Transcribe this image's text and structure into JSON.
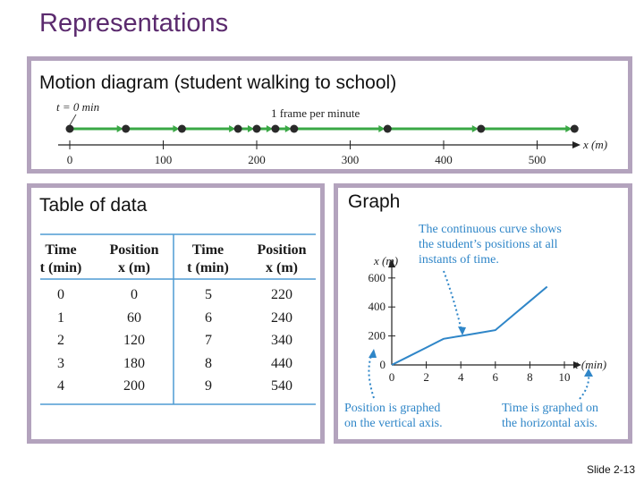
{
  "title": "Representations",
  "motion": {
    "label": "Motion diagram (student walking to school)",
    "t0_label": "t = 0 min",
    "frame_label": "1 frame per minute",
    "axis_label": "x (m)",
    "ticks": [
      "0",
      "100",
      "200",
      "300",
      "400",
      "500"
    ],
    "positions_m": [
      0,
      60,
      120,
      180,
      200,
      220,
      240,
      340,
      440,
      540
    ]
  },
  "table": {
    "label": "Table of data",
    "headers": [
      [
        "Time",
        "t (min)"
      ],
      [
        "Position",
        "x (m)"
      ],
      [
        "Time",
        "t (min)"
      ],
      [
        "Position",
        "x (m)"
      ]
    ],
    "rows": [
      [
        "0",
        "0",
        "5",
        "220"
      ],
      [
        "1",
        "60",
        "6",
        "240"
      ],
      [
        "2",
        "120",
        "7",
        "340"
      ],
      [
        "3",
        "180",
        "8",
        "440"
      ],
      [
        "4",
        "200",
        "9",
        "540"
      ]
    ]
  },
  "graph": {
    "label": "Graph",
    "callout_curve": [
      "The continuous curve shows",
      "the student’s positions at all",
      "instants of time."
    ],
    "callout_vertical": [
      "Position is graphed",
      "on the vertical axis."
    ],
    "callout_horizontal": [
      "Time is graphed on",
      "the horizontal axis."
    ]
  },
  "chart_data": {
    "type": "line",
    "x": [
      0,
      1,
      2,
      3,
      4,
      5,
      6,
      7,
      8,
      9
    ],
    "y": [
      0,
      60,
      120,
      180,
      200,
      220,
      240,
      340,
      440,
      540
    ],
    "xlabel": "t (min)",
    "ylabel": "x (m)",
    "xticks": [
      "0",
      "2",
      "4",
      "6",
      "8",
      "10"
    ],
    "yticks": [
      "0",
      "200",
      "400",
      "600"
    ],
    "xlim": [
      0,
      10
    ],
    "ylim": [
      0,
      600
    ],
    "grid": false
  },
  "colors": {
    "title": "#5b2a6e",
    "panel_border": "#b3a3bd",
    "curve": "#2f86c8",
    "motion": "#3aa845"
  },
  "footer": {
    "slide": "Slide 2-13"
  }
}
